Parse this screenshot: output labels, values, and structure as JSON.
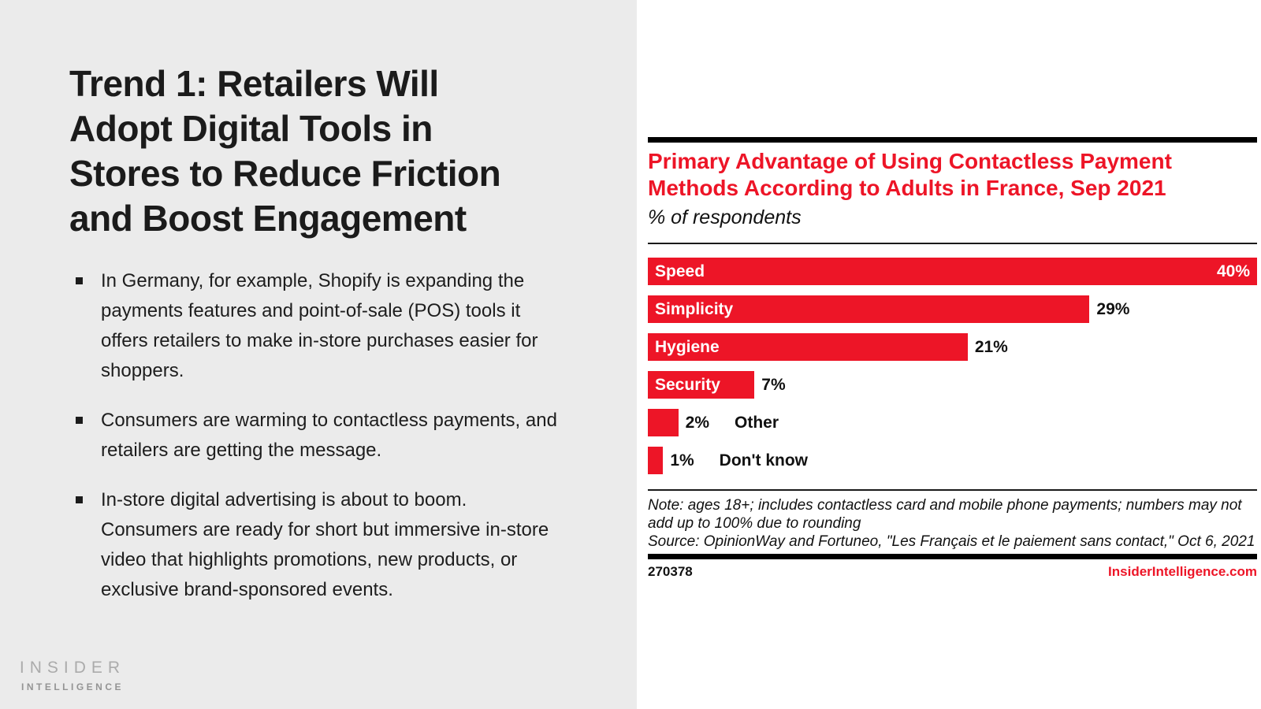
{
  "left_panel": {
    "title_lines": [
      "Trend 1: Retailers Will",
      "Adopt Digital Tools in",
      "Stores to Reduce Friction",
      "and Boost Engagement"
    ],
    "bullets": [
      "In Germany, for example, Shopify is expanding the payments features and point-of-sale (POS) tools it offers retailers to make in-store purchases easier for shoppers.",
      "Consumers are warming to contactless payments, and retailers are getting the message.",
      "In-store digital advertising is about to boom. Consumers are ready for short but immersive in-store video that highlights promotions, new products, or exclusive brand-sponsored events."
    ],
    "logo": {
      "line1": "INSIDER",
      "line2": "INTELLIGENCE"
    }
  },
  "chart": {
    "title_lines": [
      "Primary Advantage of Using Contactless Payment",
      "Methods According to Adults in France, Sep 2021"
    ],
    "subtitle": "% of respondents",
    "note": "Note: ages 18+; includes contactless card and mobile phone payments; numbers may not add up to 100% due to rounding",
    "source": "Source: OpinionWay and Fortuneo, \"Les Français et le paiement sans contact,\" Oct 6, 2021",
    "footer_id": "270378",
    "footer_link": "InsiderIntelligence.com",
    "colors": {
      "bar_red": "#ed1527",
      "accent_red": "#ed1527",
      "left_bg": "#ebebeb"
    }
  },
  "chart_data": {
    "type": "bar",
    "orientation": "horizontal",
    "title": "Primary Advantage of Using Contactless Payment Methods According to Adults in France, Sep 2021",
    "ylabel": "",
    "xlabel": "% of respondents",
    "xlim": [
      0,
      40
    ],
    "grid": false,
    "legend": "none",
    "categories": [
      "Speed",
      "Simplicity",
      "Hygiene",
      "Security",
      "Other",
      "Don't know"
    ],
    "values": [
      40,
      29,
      21,
      7,
      2,
      1
    ],
    "bars": [
      {
        "label": "Speed",
        "value": 40,
        "display": "40%",
        "label_pos": "inside",
        "value_pos": "inside"
      },
      {
        "label": "Simplicity",
        "value": 29,
        "display": "29%",
        "label_pos": "inside",
        "value_pos": "outside"
      },
      {
        "label": "Hygiene",
        "value": 21,
        "display": "21%",
        "label_pos": "inside",
        "value_pos": "outside"
      },
      {
        "label": "Security",
        "value": 7,
        "display": "7%",
        "label_pos": "inside",
        "value_pos": "outside"
      },
      {
        "label": "Other",
        "value": 2,
        "display": "2%",
        "label_pos": "outside",
        "value_pos": "outside"
      },
      {
        "label": "Don't know",
        "value": 1,
        "display": "1%",
        "label_pos": "outside",
        "value_pos": "outside"
      }
    ]
  }
}
